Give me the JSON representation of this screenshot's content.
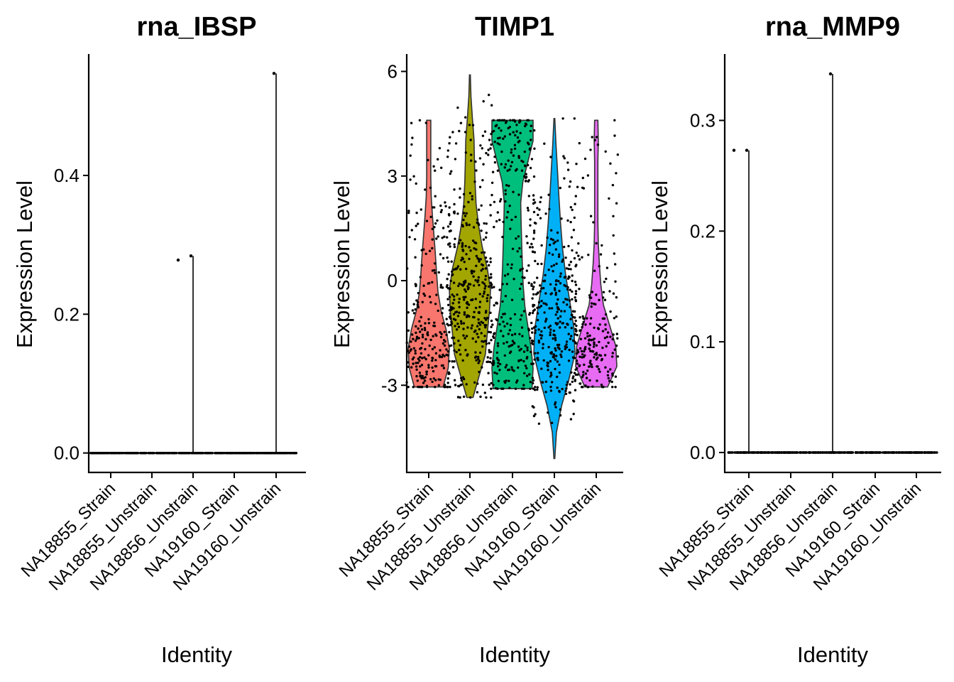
{
  "chart_data": [
    {
      "type": "violin",
      "title": "rna_IBSP",
      "xlabel": "Identity",
      "ylabel": "Expression Level",
      "categories": [
        "NA18855_Strain",
        "NA18855_Unstrain",
        "NA18856_Unstrain",
        "NA19160_Strain",
        "NA19160_Unstrain"
      ],
      "colors": [
        "#F8766D",
        "#A3A500",
        "#00BF7D",
        "#00B0F6",
        "#E76BF3"
      ],
      "yticks": [
        0.0,
        0.2,
        0.4
      ],
      "ytick_labels": [
        "0.0",
        "0.2",
        "0.4"
      ],
      "ylim": [
        -0.028,
        0.575
      ],
      "series": [
        {
          "category": "NA18855_Strain",
          "min": 0.0,
          "max": 0.0,
          "median": 0.0,
          "outliers": []
        },
        {
          "category": "NA18855_Unstrain",
          "min": 0.0,
          "max": 0.0,
          "median": 0.0,
          "outliers": []
        },
        {
          "category": "NA18856_Unstrain",
          "min": 0.0,
          "max": 0.284,
          "median": 0.0,
          "outliers": [
            0.284,
            0.278
          ]
        },
        {
          "category": "NA19160_Strain",
          "min": 0.0,
          "max": 0.0,
          "median": 0.0,
          "outliers": []
        },
        {
          "category": "NA19160_Unstrain",
          "min": 0.0,
          "max": 0.547,
          "median": 0.0,
          "outliers": [
            0.547
          ]
        }
      ]
    },
    {
      "type": "violin",
      "title": "TIMP1",
      "xlabel": "Identity",
      "ylabel": "Expression Level",
      "categories": [
        "NA18855_Strain",
        "NA18855_Unstrain",
        "NA18856_Unstrain",
        "NA19160_Strain",
        "NA19160_Unstrain"
      ],
      "colors": [
        "#F8766D",
        "#A3A500",
        "#00BF7D",
        "#00B0F6",
        "#E76BF3"
      ],
      "yticks": [
        -3,
        0,
        3,
        6
      ],
      "ytick_labels": [
        "-3",
        "0",
        "3",
        "6"
      ],
      "ylim": [
        -5.5,
        6.5
      ],
      "series": [
        {
          "category": "NA18855_Strain",
          "min": -3.05,
          "max": 4.6,
          "median": -1.2,
          "n": 260
        },
        {
          "category": "NA18855_Unstrain",
          "min": -3.35,
          "max": 5.9,
          "median": -0.8,
          "n": 360
        },
        {
          "category": "NA18856_Unstrain",
          "min": -3.1,
          "max": 4.6,
          "median": 0.6,
          "n": 300
        },
        {
          "category": "NA19160_Strain",
          "min": -5.1,
          "max": 4.65,
          "median": -1.8,
          "n": 320
        },
        {
          "category": "NA19160_Unstrain",
          "min": -3.05,
          "max": 4.6,
          "median": -1.8,
          "n": 210
        }
      ]
    },
    {
      "type": "violin",
      "title": "rna_MMP9",
      "xlabel": "Identity",
      "ylabel": "Expression Level",
      "categories": [
        "NA18855_Strain",
        "NA18855_Unstrain",
        "NA18856_Unstrain",
        "NA19160_Strain",
        "NA19160_Unstrain"
      ],
      "colors": [
        "#F8766D",
        "#A3A500",
        "#00BF7D",
        "#00B0F6",
        "#E76BF3"
      ],
      "yticks": [
        0.0,
        0.1,
        0.2,
        0.3
      ],
      "ytick_labels": [
        "0.0",
        "0.1",
        "0.2",
        "0.3"
      ],
      "ylim": [
        -0.018,
        0.36
      ],
      "series": [
        {
          "category": "NA18855_Strain",
          "min": 0.0,
          "max": 0.273,
          "median": 0.0,
          "outliers": [
            0.273,
            0.273
          ]
        },
        {
          "category": "NA18855_Unstrain",
          "min": 0.0,
          "max": 0.0,
          "median": 0.0,
          "outliers": []
        },
        {
          "category": "NA18856_Unstrain",
          "min": 0.0,
          "max": 0.342,
          "median": 0.0,
          "outliers": [
            0.342
          ]
        },
        {
          "category": "NA19160_Strain",
          "min": 0.0,
          "max": 0.0,
          "median": 0.0,
          "outliers": []
        },
        {
          "category": "NA19160_Unstrain",
          "min": 0.0,
          "max": 0.0,
          "median": 0.0,
          "outliers": []
        }
      ]
    }
  ]
}
